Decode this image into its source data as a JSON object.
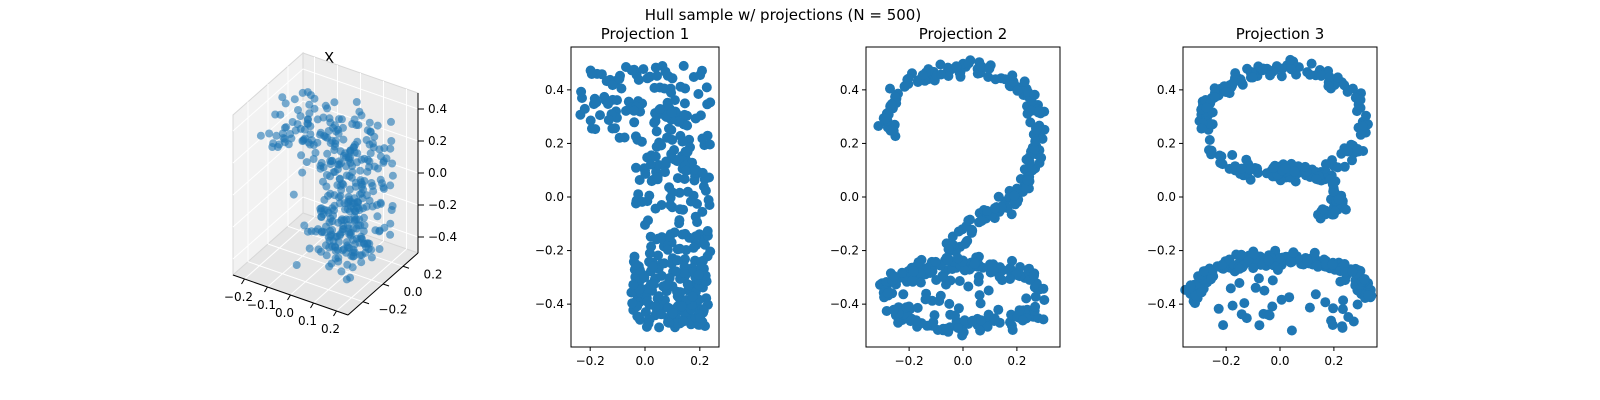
{
  "figure": {
    "suptitle": "Hull sample w/ projections (N = 500)"
  },
  "chart_data": [
    {
      "type": "scatter",
      "projection": "3d",
      "title": "X",
      "x_ticks": [
        "−0.2",
        "−0.1",
        "0.0",
        "0.1",
        "0.2"
      ],
      "y_ticks": [
        "−0.2",
        "0.0",
        "0.2"
      ],
      "z_ticks": [
        "−0.4",
        "−0.2",
        "0.0",
        "0.2",
        "0.4"
      ],
      "xlim": [
        -0.25,
        0.25
      ],
      "ylim": [
        -0.35,
        0.35
      ],
      "zlim": [
        -0.5,
        0.5
      ],
      "color": "#1f77b4",
      "n_points": 500,
      "shape_description": "3D point cloud forming the digits 1, 2 and 3 superimposed"
    },
    {
      "type": "scatter",
      "title": "Projection 1",
      "xlim": [
        -0.27,
        0.27
      ],
      "ylim": [
        -0.56,
        0.56
      ],
      "x_ticks": [
        "−0.2",
        "0.0",
        "0.2"
      ],
      "y_ticks": [
        "−0.4",
        "−0.2",
        "0.0",
        "0.2",
        "0.4"
      ],
      "color": "#1f77b4",
      "shape": "digit-1"
    },
    {
      "type": "scatter",
      "title": "Projection 2",
      "xlim": [
        -0.36,
        0.36
      ],
      "ylim": [
        -0.56,
        0.56
      ],
      "x_ticks": [
        "−0.2",
        "0.0",
        "0.2"
      ],
      "y_ticks": [
        "−0.4",
        "−0.2",
        "0.0",
        "0.2",
        "0.4"
      ],
      "color": "#1f77b4",
      "shape": "digit-2"
    },
    {
      "type": "scatter",
      "title": "Projection 3",
      "xlim": [
        -0.36,
        0.36
      ],
      "ylim": [
        -0.56,
        0.56
      ],
      "x_ticks": [
        "−0.2",
        "0.0",
        "0.2"
      ],
      "y_ticks": [
        "−0.4",
        "−0.2",
        "0.0",
        "0.2",
        "0.4"
      ],
      "color": "#1f77b4",
      "shape": "digit-3"
    }
  ]
}
